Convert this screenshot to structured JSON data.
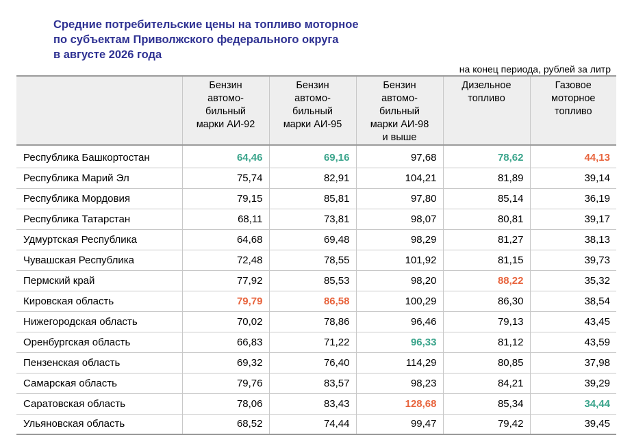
{
  "title": {
    "line1": "Средние потребительские цены на топливо моторное",
    "line2": "по субъектам Приволжского федерального округа",
    "line3": "в августе 2026 года"
  },
  "unit_note": "на конец периода, рублей за литр",
  "colors": {
    "min": "#3aa48b",
    "max": "#e8643d",
    "title": "#2e3192"
  },
  "headers": {
    "ai92": [
      "Бензин",
      "автомо-",
      "бильный",
      "марки АИ-92"
    ],
    "ai95": [
      "Бензин",
      "автомо-",
      "бильный",
      "марки АИ-95"
    ],
    "ai98": [
      "Бензин",
      "автомо-",
      "бильный",
      "марки АИ-98",
      "и выше"
    ],
    "diesel": [
      "Дизельное",
      "топливо"
    ],
    "gas": [
      "Газовое",
      "моторное",
      "топливо"
    ]
  },
  "rows": [
    {
      "region": "Республика Башкортостан",
      "values": [
        "64,46",
        "69,16",
        "97,68",
        "78,62",
        "44,13"
      ],
      "hl": [
        "min",
        "min",
        "",
        "min",
        "max"
      ]
    },
    {
      "region": "Республика Марий Эл",
      "values": [
        "75,74",
        "82,91",
        "104,21",
        "81,89",
        "39,14"
      ],
      "hl": [
        "",
        "",
        "",
        "",
        ""
      ]
    },
    {
      "region": "Республика Мордовия",
      "values": [
        "79,15",
        "85,81",
        "97,80",
        "85,14",
        "36,19"
      ],
      "hl": [
        "",
        "",
        "",
        "",
        ""
      ]
    },
    {
      "region": "Республика Татарстан",
      "values": [
        "68,11",
        "73,81",
        "98,07",
        "80,81",
        "39,17"
      ],
      "hl": [
        "",
        "",
        "",
        "",
        ""
      ]
    },
    {
      "region": "Удмуртская Республика",
      "values": [
        "64,68",
        "69,48",
        "98,29",
        "81,27",
        "38,13"
      ],
      "hl": [
        "",
        "",
        "",
        "",
        ""
      ]
    },
    {
      "region": "Чувашская Республика",
      "values": [
        "72,48",
        "78,55",
        "101,92",
        "81,15",
        "39,73"
      ],
      "hl": [
        "",
        "",
        "",
        "",
        ""
      ]
    },
    {
      "region": "Пермский край",
      "values": [
        "77,92",
        "85,53",
        "98,20",
        "88,22",
        "35,32"
      ],
      "hl": [
        "",
        "",
        "",
        "max",
        ""
      ]
    },
    {
      "region": "Кировская область",
      "values": [
        "79,79",
        "86,58",
        "100,29",
        "86,30",
        "38,54"
      ],
      "hl": [
        "max",
        "max",
        "",
        "",
        ""
      ]
    },
    {
      "region": "Нижегородская область",
      "values": [
        "70,02",
        "78,86",
        "96,46",
        "79,13",
        "43,45"
      ],
      "hl": [
        "",
        "",
        "",
        "",
        ""
      ]
    },
    {
      "region": "Оренбургская область",
      "values": [
        "66,83",
        "71,22",
        "96,33",
        "81,12",
        "43,59"
      ],
      "hl": [
        "",
        "",
        "min",
        "",
        ""
      ]
    },
    {
      "region": "Пензенская область",
      "values": [
        "69,32",
        "76,40",
        "114,29",
        "80,85",
        "37,98"
      ],
      "hl": [
        "",
        "",
        "",
        "",
        ""
      ]
    },
    {
      "region": "Самарская область",
      "values": [
        "79,76",
        "83,57",
        "98,23",
        "84,21",
        "39,29"
      ],
      "hl": [
        "",
        "",
        "",
        "",
        ""
      ]
    },
    {
      "region": "Саратовская область",
      "values": [
        "78,06",
        "83,43",
        "128,68",
        "85,34",
        "34,44"
      ],
      "hl": [
        "",
        "",
        "max",
        "",
        "min"
      ]
    },
    {
      "region": "Ульяновская область",
      "values": [
        "68,52",
        "74,44",
        "99,47",
        "79,42",
        "39,45"
      ],
      "hl": [
        "",
        "",
        "",
        "",
        ""
      ]
    }
  ]
}
